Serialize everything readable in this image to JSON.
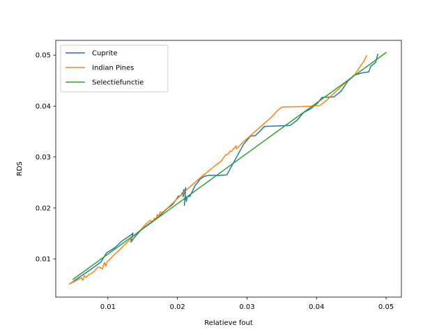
{
  "chart_data": {
    "type": "line",
    "title": "",
    "xlabel": "Relatieve fout",
    "ylabel": "RDS",
    "xlim": [
      0.0025,
      0.0522
    ],
    "ylim": [
      0.0025,
      0.0529
    ],
    "xticks": [
      0.01,
      0.02,
      0.03,
      0.04,
      0.05
    ],
    "xtick_labels": [
      "0.01",
      "0.02",
      "0.03",
      "0.04",
      "0.05"
    ],
    "yticks": [
      0.01,
      0.02,
      0.03,
      0.04,
      0.05
    ],
    "ytick_labels": [
      "0.01",
      "0.02",
      "0.03",
      "0.04",
      "0.05"
    ],
    "grid": false,
    "legend_position": "top-left",
    "series": [
      {
        "name": "Cuprite",
        "color": "#1f77b4",
        "points": [
          [
            0.0045,
            0.0051
          ],
          [
            0.006,
            0.0065
          ],
          [
            0.0075,
            0.0079
          ],
          [
            0.009,
            0.0094
          ],
          [
            0.0098,
            0.0112
          ],
          [
            0.0103,
            0.0116
          ],
          [
            0.011,
            0.0122
          ],
          [
            0.012,
            0.0135
          ],
          [
            0.0131,
            0.0145
          ],
          [
            0.0134,
            0.0148
          ],
          [
            0.0136,
            0.0151
          ],
          [
            0.0133,
            0.0133
          ],
          [
            0.0138,
            0.0142
          ],
          [
            0.0147,
            0.0156
          ],
          [
            0.0158,
            0.0168
          ],
          [
            0.0172,
            0.0182
          ],
          [
            0.0183,
            0.0196
          ],
          [
            0.0193,
            0.0207
          ],
          [
            0.0199,
            0.0218
          ],
          [
            0.0201,
            0.0223
          ],
          [
            0.0205,
            0.0224
          ],
          [
            0.0207,
            0.023
          ],
          [
            0.021,
            0.0229
          ],
          [
            0.0209,
            0.0236
          ],
          [
            0.0208,
            0.0222
          ],
          [
            0.0212,
            0.024
          ],
          [
            0.021,
            0.0205
          ],
          [
            0.0211,
            0.0225
          ],
          [
            0.0213,
            0.0213
          ],
          [
            0.0214,
            0.0222
          ],
          [
            0.0218,
            0.0223
          ],
          [
            0.0225,
            0.0243
          ],
          [
            0.0232,
            0.0256
          ],
          [
            0.0238,
            0.0262
          ],
          [
            0.0245,
            0.0264
          ],
          [
            0.0262,
            0.0264
          ],
          [
            0.0271,
            0.0265
          ],
          [
            0.0285,
            0.03
          ],
          [
            0.0295,
            0.0325
          ],
          [
            0.0305,
            0.0341
          ],
          [
            0.0312,
            0.0342
          ],
          [
            0.0318,
            0.035
          ],
          [
            0.0325,
            0.036
          ],
          [
            0.0345,
            0.0361
          ],
          [
            0.0362,
            0.0362
          ],
          [
            0.0372,
            0.0372
          ],
          [
            0.0381,
            0.0387
          ],
          [
            0.0392,
            0.0395
          ],
          [
            0.0401,
            0.0405
          ],
          [
            0.0408,
            0.0417
          ],
          [
            0.0425,
            0.0418
          ],
          [
            0.0435,
            0.0429
          ],
          [
            0.0445,
            0.0449
          ],
          [
            0.0455,
            0.0461
          ],
          [
            0.0465,
            0.0465
          ],
          [
            0.0475,
            0.0467
          ],
          [
            0.0478,
            0.0478
          ],
          [
            0.0485,
            0.0486
          ],
          [
            0.0488,
            0.0502
          ]
        ]
      },
      {
        "name": "Indian Pines",
        "color": "#ff7f0e",
        "points": [
          [
            0.0045,
            0.0051
          ],
          [
            0.0052,
            0.0056
          ],
          [
            0.0058,
            0.006
          ],
          [
            0.0062,
            0.0063
          ],
          [
            0.0064,
            0.0058
          ],
          [
            0.0066,
            0.0067
          ],
          [
            0.0069,
            0.0064
          ],
          [
            0.0072,
            0.0069
          ],
          [
            0.0076,
            0.0071
          ],
          [
            0.0081,
            0.0077
          ],
          [
            0.0085,
            0.0083
          ],
          [
            0.0088,
            0.0084
          ],
          [
            0.0092,
            0.008
          ],
          [
            0.0095,
            0.0093
          ],
          [
            0.0097,
            0.0086
          ],
          [
            0.0099,
            0.0095
          ],
          [
            0.0102,
            0.0098
          ],
          [
            0.0108,
            0.0107
          ],
          [
            0.0117,
            0.0118
          ],
          [
            0.0127,
            0.0132
          ],
          [
            0.0137,
            0.0145
          ],
          [
            0.0147,
            0.0157
          ],
          [
            0.0155,
            0.0169
          ],
          [
            0.0161,
            0.0176
          ],
          [
            0.0164,
            0.0172
          ],
          [
            0.0167,
            0.018
          ],
          [
            0.0169,
            0.0178
          ],
          [
            0.0171,
            0.0187
          ],
          [
            0.0173,
            0.0183
          ],
          [
            0.0175,
            0.0192
          ],
          [
            0.0178,
            0.0191
          ],
          [
            0.0185,
            0.0199
          ],
          [
            0.0195,
            0.0212
          ],
          [
            0.0205,
            0.0225
          ],
          [
            0.0215,
            0.0238
          ],
          [
            0.0225,
            0.025
          ],
          [
            0.0235,
            0.0262
          ],
          [
            0.0245,
            0.0273
          ],
          [
            0.0255,
            0.0284
          ],
          [
            0.0263,
            0.0292
          ],
          [
            0.0266,
            0.0298
          ],
          [
            0.0268,
            0.0302
          ],
          [
            0.027,
            0.0305
          ],
          [
            0.0272,
            0.0305
          ],
          [
            0.0274,
            0.0308
          ],
          [
            0.0276,
            0.0312
          ],
          [
            0.0278,
            0.0311
          ],
          [
            0.028,
            0.0316
          ],
          [
            0.0282,
            0.0318
          ],
          [
            0.0284,
            0.0322
          ],
          [
            0.0285,
            0.0316
          ],
          [
            0.0295,
            0.033
          ],
          [
            0.0305,
            0.0342
          ],
          [
            0.0315,
            0.0354
          ],
          [
            0.0325,
            0.0366
          ],
          [
            0.0335,
            0.0378
          ],
          [
            0.0343,
            0.039
          ],
          [
            0.035,
            0.0398
          ],
          [
            0.038,
            0.0399
          ],
          [
            0.0405,
            0.0401
          ],
          [
            0.0415,
            0.0412
          ],
          [
            0.0425,
            0.0425
          ],
          [
            0.0435,
            0.0438
          ],
          [
            0.0445,
            0.045
          ],
          [
            0.0455,
            0.0462
          ],
          [
            0.0463,
            0.0478
          ],
          [
            0.0468,
            0.0488
          ],
          [
            0.0472,
            0.0499
          ]
        ]
      },
      {
        "name": "Selectiefunctie",
        "color": "#2ca02c",
        "points": [
          [
            0.005,
            0.006
          ],
          [
            0.05,
            0.0505
          ]
        ]
      }
    ]
  }
}
